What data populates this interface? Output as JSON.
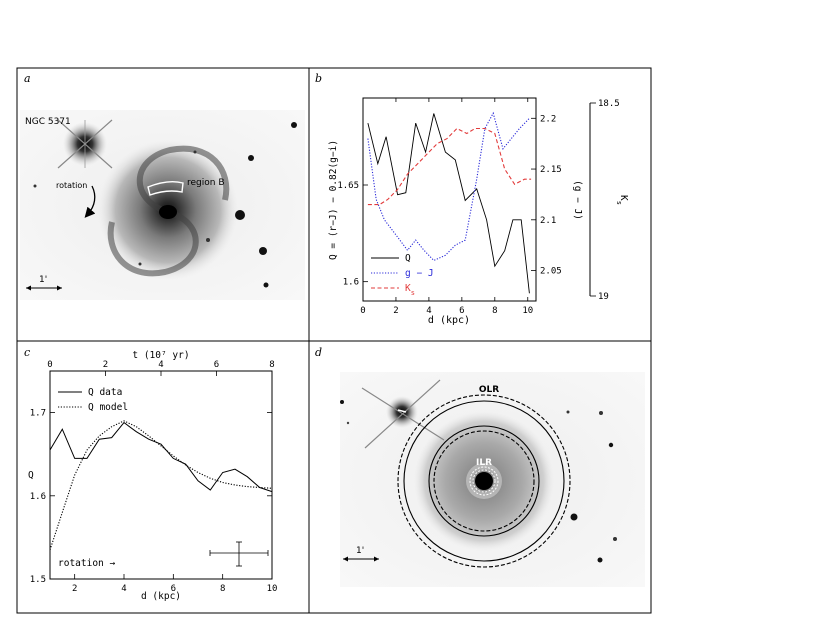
{
  "panels": {
    "a": {
      "letter": "a",
      "galaxy_label": "NGC 5371",
      "rotation_label": "rotation",
      "region_label": "region B",
      "scale_label": "1'"
    },
    "b": {
      "letter": "b",
      "ylabel_left": "Q = (r−J) − 0.82(g−i)",
      "ylabel_right": "(g − J)",
      "ylabel_far": "K_s",
      "xlabel": "d (kpc)"
    },
    "c": {
      "letter": "c",
      "ylabel": "Q",
      "xlabel": "d (kpc)",
      "top_xlabel": "t (10⁷ yr)",
      "annotation": "rotation →"
    },
    "d": {
      "letter": "d",
      "olr_label": "OLR",
      "ilr_label": "ILR",
      "scale_label": "1'"
    }
  },
  "chart_data": [
    {
      "type": "line",
      "panel": "b",
      "xlabel": "d (kpc)",
      "ylabel": "Q = (r−J) − 0.82(g−i)",
      "xlim": [
        0,
        10.5
      ],
      "xticks": [
        0,
        2,
        4,
        6,
        8,
        10
      ],
      "ylim_left": [
        1.59,
        1.695
      ],
      "yticks_left": [
        1.6,
        1.65
      ],
      "ylim_right": [
        2.02,
        2.22
      ],
      "yticks_right": [
        2.05,
        2.1,
        2.15,
        2.2
      ],
      "ylim_far": [
        19.0,
        18.5
      ],
      "yticks_far": [
        18.5,
        19
      ],
      "legend_position": "bottom-left",
      "series": [
        {
          "name": "Q",
          "axis": "left",
          "color": "#000000",
          "style": "solid",
          "x": [
            0.3,
            0.9,
            1.4,
            2.1,
            2.6,
            3.2,
            3.8,
            4.3,
            5.0,
            5.6,
            6.2,
            6.9,
            7.5,
            8.0,
            8.6,
            9.1,
            9.6,
            10.1
          ],
          "y": [
            1.682,
            1.661,
            1.675,
            1.645,
            1.646,
            1.682,
            1.667,
            1.687,
            1.667,
            1.663,
            1.642,
            1.648,
            1.632,
            1.608,
            1.616,
            1.632,
            1.632,
            1.594
          ]
        },
        {
          "name": "g − J",
          "axis": "right",
          "color": "#2b2bd9",
          "style": "dotted",
          "x": [
            0.3,
            0.8,
            1.3,
            2.0,
            2.7,
            3.2,
            3.7,
            4.3,
            5.0,
            5.6,
            6.2,
            6.9,
            7.4,
            7.9,
            8.5,
            9.0,
            9.5,
            10.1
          ],
          "y": [
            2.18,
            2.12,
            2.1,
            2.085,
            2.07,
            2.08,
            2.07,
            2.06,
            2.065,
            2.075,
            2.08,
            2.14,
            2.19,
            2.205,
            2.17,
            2.18,
            2.19,
            2.2
          ]
        },
        {
          "name": "K_s",
          "axis": "right",
          "color": "#e23b3b",
          "style": "dashed",
          "x": [
            0.3,
            1.0,
            1.5,
            2.1,
            2.7,
            3.3,
            3.9,
            4.5,
            5.1,
            5.7,
            6.3,
            6.8,
            7.4,
            8.0,
            8.6,
            9.2,
            9.8,
            10.2
          ],
          "y": [
            2.115,
            2.115,
            2.12,
            2.13,
            2.145,
            2.155,
            2.165,
            2.175,
            2.18,
            2.19,
            2.185,
            2.19,
            2.19,
            2.185,
            2.15,
            2.135,
            2.14,
            2.14
          ]
        }
      ]
    },
    {
      "type": "line",
      "panel": "c",
      "xlabel": "d (kpc)",
      "ylabel": "Q",
      "top_xlabel": "t (10⁷ yr)",
      "xlim": [
        1,
        10
      ],
      "xticks": [
        2,
        4,
        6,
        8,
        10
      ],
      "top_xlim": [
        0,
        8
      ],
      "top_xticks": [
        0,
        2,
        4,
        6,
        8
      ],
      "ylim": [
        1.5,
        1.75
      ],
      "yticks": [
        1.5,
        1.6,
        1.7
      ],
      "legend_position": "top-left",
      "series": [
        {
          "name": "Q data",
          "style": "solid",
          "color": "#000000",
          "x": [
            1.0,
            1.5,
            2.0,
            2.5,
            3.0,
            3.5,
            4.0,
            4.5,
            5.0,
            5.5,
            6.0,
            6.5,
            7.0,
            7.5,
            8.0,
            8.5,
            9.0,
            9.5,
            10.0
          ],
          "y": [
            1.655,
            1.68,
            1.645,
            1.645,
            1.668,
            1.67,
            1.688,
            1.677,
            1.668,
            1.662,
            1.645,
            1.638,
            1.618,
            1.607,
            1.628,
            1.632,
            1.623,
            1.61,
            1.605
          ]
        },
        {
          "name": "Q model",
          "style": "dotted",
          "color": "#000000",
          "x": [
            1.0,
            1.5,
            2.0,
            2.5,
            3.0,
            3.5,
            4.0,
            4.5,
            5.0,
            5.5,
            6.0,
            6.5,
            7.0,
            7.5,
            8.0,
            8.5,
            9.0,
            9.5,
            10.0
          ],
          "y": [
            1.535,
            1.58,
            1.625,
            1.655,
            1.672,
            1.683,
            1.69,
            1.683,
            1.672,
            1.66,
            1.648,
            1.637,
            1.628,
            1.621,
            1.616,
            1.613,
            1.611,
            1.61,
            1.609
          ]
        }
      ]
    }
  ]
}
